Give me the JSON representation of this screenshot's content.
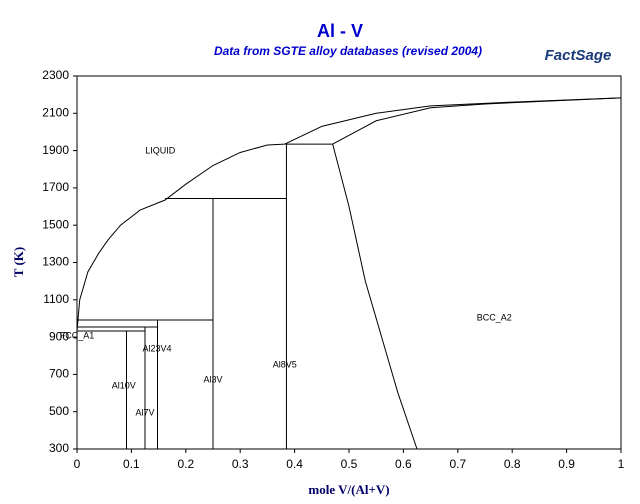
{
  "chart_data": {
    "type": "line",
    "title": "Al - V",
    "subtitle": "Data from SGTE alloy databases (revised 2004)",
    "logo": "FactSage",
    "x_label": "mole V/(Al+V)",
    "y_label": "T (K)",
    "xlim": [
      0,
      1
    ],
    "ylim": [
      300,
      2300
    ],
    "xticks": [
      0,
      0.1,
      0.2,
      0.3,
      0.4,
      0.5,
      0.6,
      0.7,
      0.8,
      0.9,
      1
    ],
    "yticks": [
      300,
      500,
      700,
      900,
      1100,
      1300,
      1500,
      1700,
      1900,
      2100,
      2300
    ],
    "grid": false,
    "series": [
      {
        "color": "#000000",
        "x": [
          0,
          0.005,
          0.02,
          0.04,
          0.057,
          0.08,
          0.116,
          0.162,
          0.2,
          0.25,
          0.3,
          0.35,
          0.382
        ],
        "values": [
          933,
          1100,
          1250,
          1350,
          1421,
          1500,
          1581,
          1635,
          1720,
          1820,
          1890,
          1930,
          1935
        ]
      },
      {
        "color": "#000000",
        "x": [
          0.382,
          0.45,
          0.55,
          0.65,
          0.8,
          1
        ],
        "values": [
          1935,
          2030,
          2100,
          2140,
          2160,
          2183
        ]
      },
      {
        "color": "#000000",
        "x": [
          0.47,
          0.55,
          0.65,
          0.75,
          1
        ],
        "values": [
          1935,
          2060,
          2130,
          2150,
          2183
        ]
      },
      {
        "color": "#000000",
        "x": [
          0.47,
          0.5,
          0.53,
          0.56,
          0.59,
          0.625
        ],
        "values": [
          1935,
          1600,
          1200,
          900,
          600,
          300
        ]
      },
      {
        "color": "#000000",
        "x": [
          0.382,
          0.47
        ],
        "values": [
          1935,
          1935
        ]
      },
      {
        "color": "#000000",
        "x": [
          0.162,
          0.385
        ],
        "values": [
          1643,
          1643
        ]
      },
      {
        "color": "#000000",
        "x": [
          0.385,
          0.385
        ],
        "values": [
          300,
          1935
        ]
      },
      {
        "color": "#000000",
        "x": [
          0.25,
          0.25
        ],
        "values": [
          300,
          1643
        ]
      },
      {
        "color": "#000000",
        "x": [
          0,
          0.25
        ],
        "values": [
          992,
          992
        ]
      },
      {
        "color": "#000000",
        "x": [
          0.148,
          0.148
        ],
        "values": [
          300,
          992
        ]
      },
      {
        "color": "#000000",
        "x": [
          0,
          0.148
        ],
        "values": [
          954,
          954
        ]
      },
      {
        "color": "#000000",
        "x": [
          0.125,
          0.125
        ],
        "values": [
          300,
          954
        ]
      },
      {
        "color": "#000000",
        "x": [
          0,
          0.125
        ],
        "values": [
          933,
          933
        ]
      },
      {
        "color": "#000000",
        "x": [
          0.091,
          0.091
        ],
        "values": [
          300,
          933
        ]
      },
      {
        "color": "#000000",
        "x": [
          0,
          0
        ],
        "values": [
          780,
          933
        ]
      }
    ],
    "annotations": [
      {
        "text": "LIQUID",
        "x": 0.153,
        "y": 1898
      },
      {
        "text": "BCC_A2",
        "x": 0.767,
        "y": 1002
      },
      {
        "text": "FCC_A1",
        "x": 0.0,
        "y": 906
      },
      {
        "text": "Al23V4",
        "x": 0.147,
        "y": 836
      },
      {
        "text": "Al3V",
        "x": 0.25,
        "y": 670
      },
      {
        "text": "Al8V5",
        "x": 0.382,
        "y": 750
      },
      {
        "text": "Al10V",
        "x": 0.086,
        "y": 638
      },
      {
        "text": "Al7V",
        "x": 0.125,
        "y": 493
      }
    ]
  }
}
